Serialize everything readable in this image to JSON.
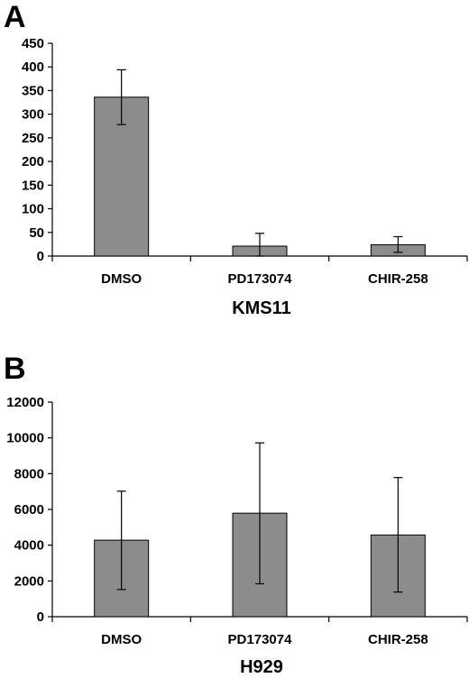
{
  "chart_data": [
    {
      "type": "bar",
      "panel": "A",
      "xlabel": "KMS11",
      "ylabel": "",
      "categories": [
        "DMSO",
        "PD173074",
        "CHIR-258"
      ],
      "values": [
        336,
        21,
        24
      ],
      "error_low": [
        278,
        0,
        8
      ],
      "error_high": [
        394,
        48,
        41
      ],
      "ylim": [
        0,
        450
      ],
      "yticks": [
        0,
        50,
        100,
        150,
        200,
        250,
        300,
        350,
        400,
        450
      ],
      "bar_color": "#8c8c8c",
      "grid": false
    },
    {
      "type": "bar",
      "panel": "B",
      "xlabel": "H929",
      "ylabel": "",
      "categories": [
        "DMSO",
        "PD173074",
        "CHIR-258"
      ],
      "values": [
        4280,
        5790,
        4570
      ],
      "error_low": [
        1520,
        1840,
        1380
      ],
      "error_high": [
        7020,
        9720,
        7780
      ],
      "ylim": [
        0,
        12000
      ],
      "yticks": [
        0,
        2000,
        4000,
        6000,
        8000,
        10000,
        12000
      ],
      "bar_color": "#8c8c8c",
      "grid": false
    }
  ]
}
